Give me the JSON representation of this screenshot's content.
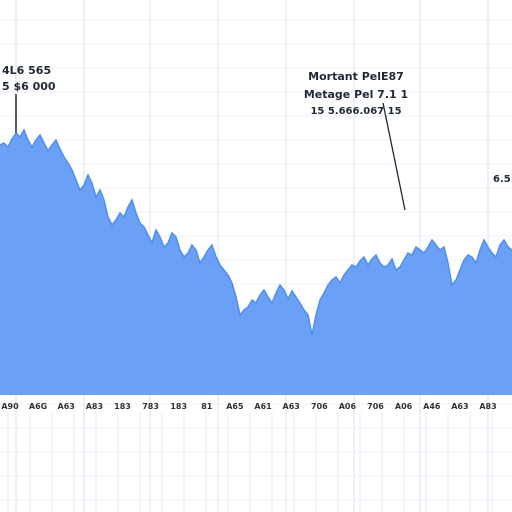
{
  "chart_data": {
    "type": "area",
    "x": [
      0,
      1,
      2,
      3,
      4,
      5,
      6,
      7,
      8,
      9,
      10,
      11,
      12,
      13,
      14,
      15,
      16,
      17,
      18,
      19,
      20,
      21,
      22,
      23,
      24,
      25,
      26,
      27,
      28,
      29,
      30,
      31,
      32,
      33,
      34,
      35,
      36,
      37,
      38,
      39,
      40,
      41,
      42,
      43,
      44,
      45,
      46,
      47,
      48,
      49,
      50,
      51,
      52,
      53,
      54,
      55,
      56,
      57,
      58,
      59,
      60,
      61,
      62,
      63,
      64,
      65,
      66,
      67,
      68,
      69,
      70,
      71,
      72,
      73,
      74,
      75,
      76,
      77,
      78,
      79,
      80,
      81,
      82,
      83,
      84,
      85,
      86,
      87,
      88,
      89,
      90,
      91,
      92,
      93,
      94,
      95,
      96,
      97,
      98,
      99,
      100,
      101,
      102,
      103,
      104,
      105,
      106,
      107,
      108,
      109,
      110,
      111,
      112,
      113,
      114,
      115,
      116,
      117,
      118,
      119,
      120,
      121,
      122,
      123,
      124,
      125,
      126,
      127,
      128
    ],
    "series": [
      {
        "values": [
          250,
          252,
          248,
          256,
          262,
          258,
          265,
          255,
          248,
          255,
          260,
          252,
          244,
          250,
          255,
          246,
          238,
          232,
          225,
          215,
          205,
          210,
          220,
          212,
          198,
          205,
          195,
          178,
          170,
          175,
          182,
          178,
          188,
          195,
          182,
          172,
          168,
          160,
          152,
          165,
          158,
          148,
          152,
          162,
          158,
          145,
          138,
          142,
          150,
          145,
          132,
          138,
          145,
          150,
          138,
          130,
          125,
          120,
          112,
          98,
          80,
          85,
          88,
          95,
          92,
          100,
          105,
          98,
          92,
          102,
          110,
          105,
          96,
          104,
          98,
          92,
          85,
          80,
          60,
          80,
          95,
          102,
          110,
          115,
          118,
          112,
          120,
          125,
          130,
          128,
          134,
          138,
          130,
          136,
          140,
          132,
          128,
          130,
          136,
          125,
          128,
          135,
          142,
          140,
          148,
          145,
          142,
          148,
          155,
          150,
          145,
          148,
          132,
          110,
          115,
          125,
          135,
          140,
          138,
          132,
          145,
          155,
          148,
          142,
          138,
          150,
          155,
          148,
          145
        ]
      }
    ],
    "ylim": [
      0,
      300
    ],
    "tick_labels": [
      "A90",
      "A6G",
      "A63",
      "A83",
      "183",
      "783",
      "183",
      "81",
      "A65",
      "A61",
      "A63",
      "706",
      "A06",
      "706",
      "A06",
      "A46",
      "A63",
      "A83"
    ],
    "annotations": [
      {
        "lines": [
          "Mortant PelE87",
          "Metage Pel 7.1 1",
          "15  5.666.067    15"
        ]
      },
      {
        "lines": [
          "4L6 565",
          "5  $6 000"
        ]
      },
      {
        "lines": [
          "6.5"
        ]
      }
    ],
    "grid": true,
    "colors": {
      "area_fill": "#6aa1f6",
      "area_stroke": "#4d8ef2",
      "grid": "#d9e2f0",
      "background": "#ffffff"
    }
  }
}
